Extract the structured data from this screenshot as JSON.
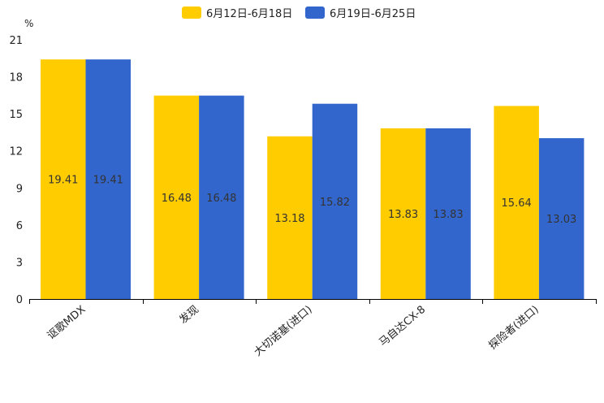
{
  "chart_data": {
    "type": "bar",
    "title": "",
    "ylabel": "%",
    "xlabel": "",
    "ylim": [
      0,
      21
    ],
    "yticks": [
      0,
      3,
      6,
      9,
      12,
      15,
      18,
      21
    ],
    "categories": [
      "讴歌MDX",
      "发现",
      "大切诺基(进口)",
      "马自达CX-8",
      "探险者(进口)"
    ],
    "series": [
      {
        "name": "6月12日-6月18日",
        "color": "#FFCC00",
        "values": [
          19.41,
          16.48,
          13.18,
          13.83,
          15.64
        ]
      },
      {
        "name": "6月19日-6月25日",
        "color": "#3366CC",
        "values": [
          19.41,
          16.48,
          15.82,
          13.83,
          13.03
        ]
      }
    ],
    "legend_position": "top-center",
    "grid": false
  }
}
